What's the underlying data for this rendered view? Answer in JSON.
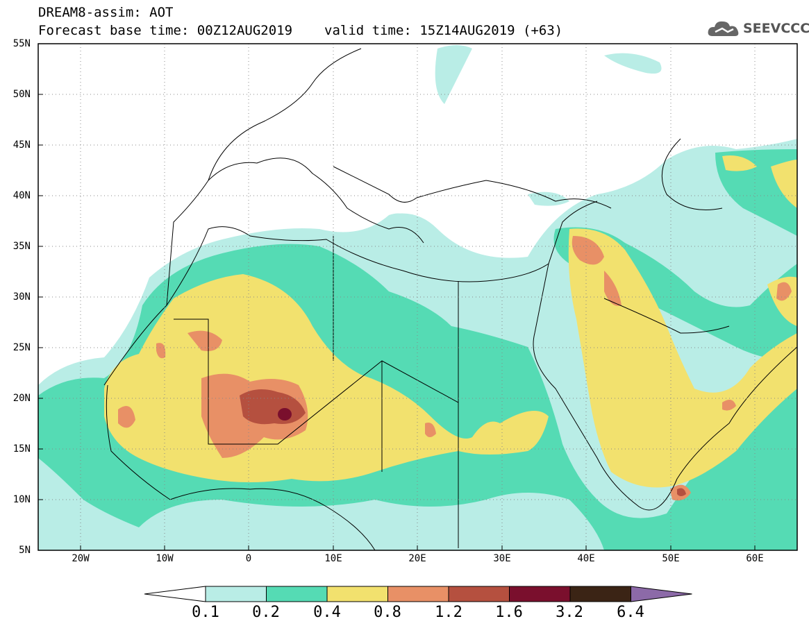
{
  "header": {
    "title_line1": "DREAM8-assim: AOT",
    "base_time": "Forecast base time: 00Z12AUG2019",
    "valid_time": "valid time: 15Z14AUG2019 (+63)"
  },
  "logo": {
    "text": "SEEVCCC",
    "icon": "cloud-logo-icon",
    "color": "#555555"
  },
  "map": {
    "lon_range": [
      -25,
      65
    ],
    "lat_range": [
      5,
      55
    ],
    "grid": true,
    "lat_labels": [
      "55N",
      "50N",
      "45N",
      "40N",
      "35N",
      "30N",
      "25N",
      "20N",
      "15N",
      "10N",
      "5N"
    ],
    "lon_labels": [
      "20W",
      "10W",
      "0",
      "10E",
      "20E",
      "30E",
      "40E",
      "50E",
      "60E"
    ]
  },
  "colorbar": {
    "labels": [
      "0.1",
      "0.2",
      "0.4",
      "0.8",
      "1.2",
      "1.6",
      "3.2",
      "6.4"
    ],
    "colors": [
      "#ffffff",
      "#b9ede6",
      "#55dbb4",
      "#f2e16e",
      "#e89066",
      "#b5503f",
      "#7a0f2d",
      "#3b2415",
      "#8c6aa8"
    ]
  }
}
